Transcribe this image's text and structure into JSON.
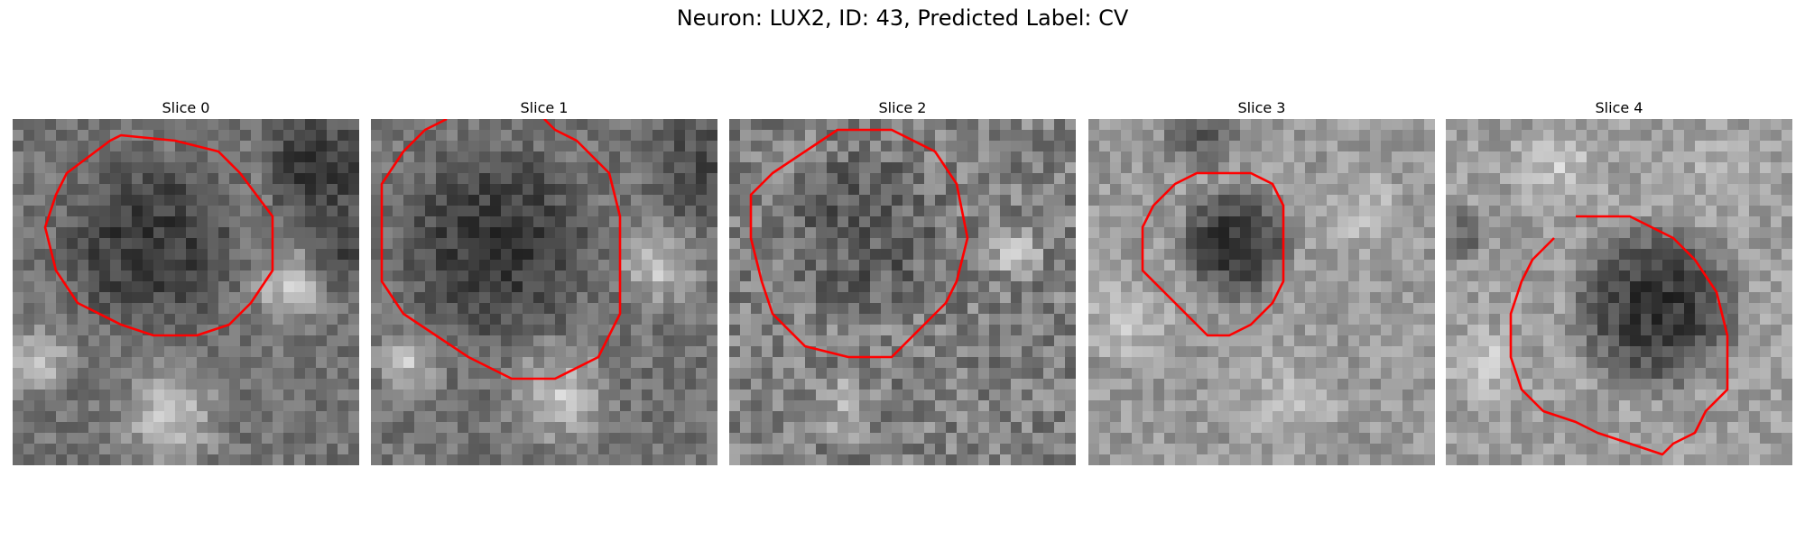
{
  "figure": {
    "title": "Neuron: LUX2, ID: 43, Predicted Label: CV",
    "contour_color": "#ff0000",
    "colormap": "gray"
  },
  "slices": [
    {
      "label": "Slice 0"
    },
    {
      "label": "Slice 1"
    },
    {
      "label": "Slice 2"
    },
    {
      "label": "Slice 3"
    },
    {
      "label": "Slice 4"
    }
  ]
}
